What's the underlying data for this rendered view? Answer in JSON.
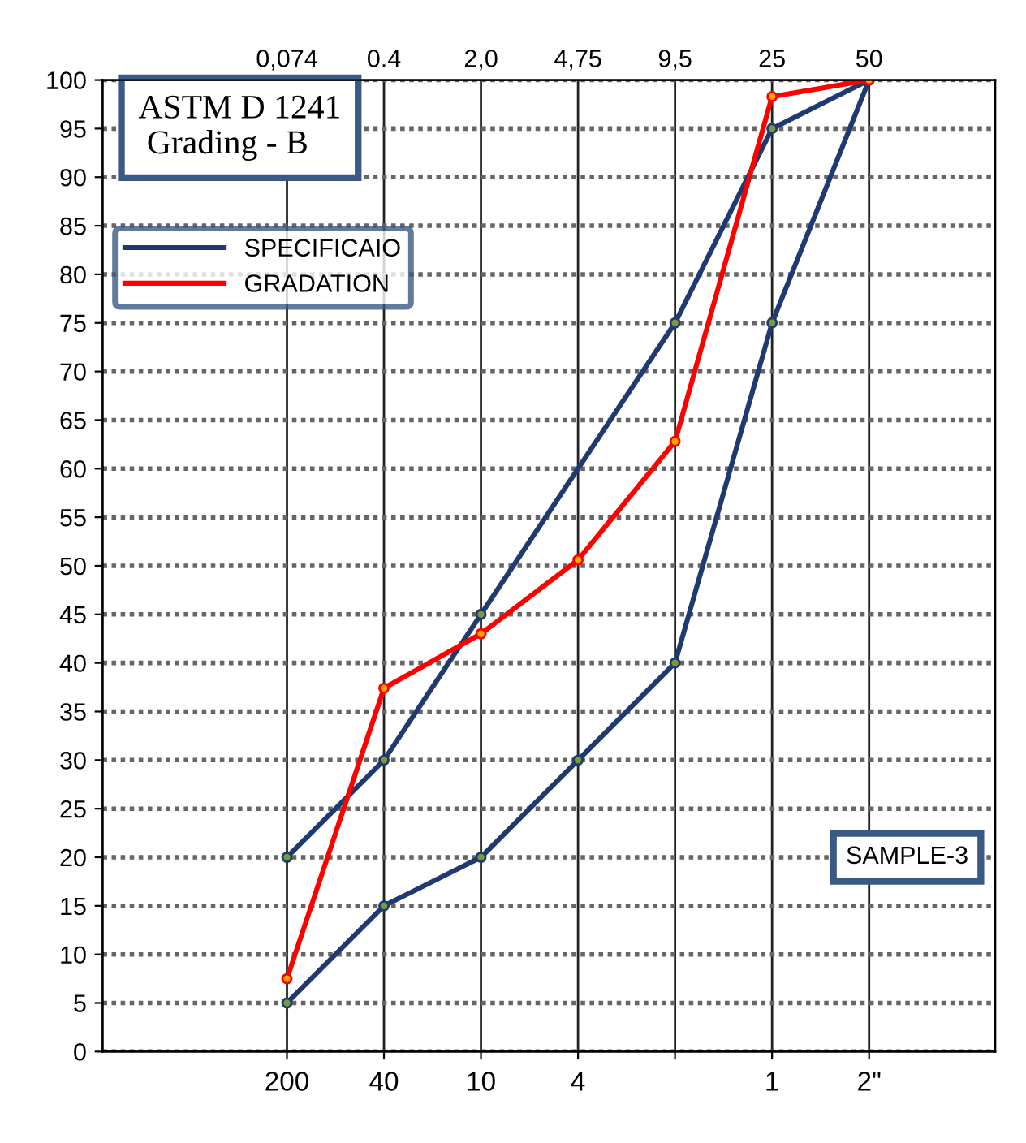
{
  "chart_data": {
    "type": "line",
    "title": "ASTM D 1241\n Grading - B",
    "categories": [
      "0,074",
      "0.4",
      "2,0",
      "4,75",
      "9,5",
      "25",
      "50"
    ],
    "annotations": [
      {
        "text": "200",
        "x": "0,074"
      },
      {
        "text": "40",
        "x": "0.4"
      },
      {
        "text": "10",
        "x": "2,0"
      },
      {
        "text": "4",
        "x": "4,75"
      },
      {
        "text": "1",
        "x": "25"
      },
      {
        "text": "2\"",
        "x": "50"
      },
      "SAMPLE-3"
    ],
    "series": [
      {
        "name": "SPECIFICAIO",
        "color": "#1f3a70",
        "values": [
          5,
          15,
          20,
          30,
          40,
          75,
          100
        ]
      },
      {
        "color": "#1f3a70",
        "values": [
          20,
          30,
          45,
          null,
          75,
          95,
          100
        ]
      },
      {
        "name": "GRADATION",
        "color": "#ff0000",
        "values": [
          7.5,
          37.4,
          43,
          50.6,
          62.8,
          98.3,
          100
        ]
      }
    ],
    "ylim": [
      0,
      100
    ],
    "yticks": [
      0,
      5,
      10,
      15,
      20,
      25,
      30,
      35,
      40,
      45,
      50,
      55,
      60,
      65,
      70,
      75,
      80,
      85,
      90,
      95,
      100
    ],
    "grid": true,
    "legend": "top left",
    "marker": "circle",
    "line_style": "solid"
  }
}
